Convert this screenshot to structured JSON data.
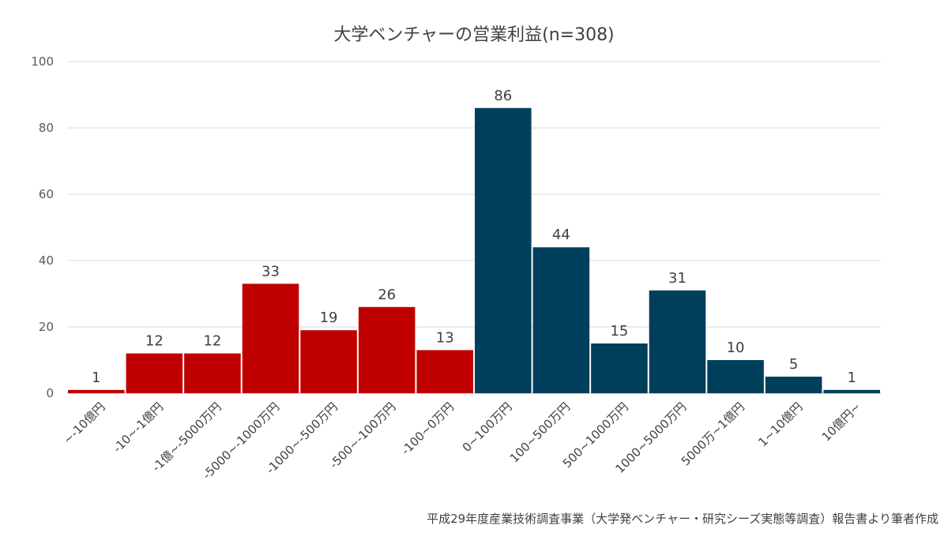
{
  "chart_data": {
    "type": "bar",
    "title": "大学ベンチャーの営業利益(n=308)",
    "categories": [
      "~-10億円",
      "-10~-1億円",
      "-1億~-5000万円",
      "-5000~-1000万円",
      "-1000~-500万円",
      "-500~-100万円",
      "-100~0万円",
      "0~100万円",
      "100~500万円",
      "500~1000万円",
      "1000~5000万円",
      "5000万~1億円",
      "1~10億円",
      "10億円~"
    ],
    "values": [
      1,
      12,
      12,
      33,
      19,
      26,
      13,
      86,
      44,
      15,
      31,
      10,
      5,
      1
    ],
    "colors": [
      "#c00000",
      "#c00000",
      "#c00000",
      "#c00000",
      "#c00000",
      "#c00000",
      "#c00000",
      "#003f5c",
      "#003f5c",
      "#003f5c",
      "#003f5c",
      "#003f5c",
      "#003f5c",
      "#003f5c"
    ],
    "ylim": [
      0,
      100
    ],
    "yticks": [
      0,
      20,
      40,
      60,
      80,
      100
    ],
    "grid": true,
    "xlabel": "",
    "ylabel": ""
  },
  "source_note": "平成29年度産業技術調査事業（大学発ベンチャー・研究シーズ実態等調査）報告書より筆者作成"
}
